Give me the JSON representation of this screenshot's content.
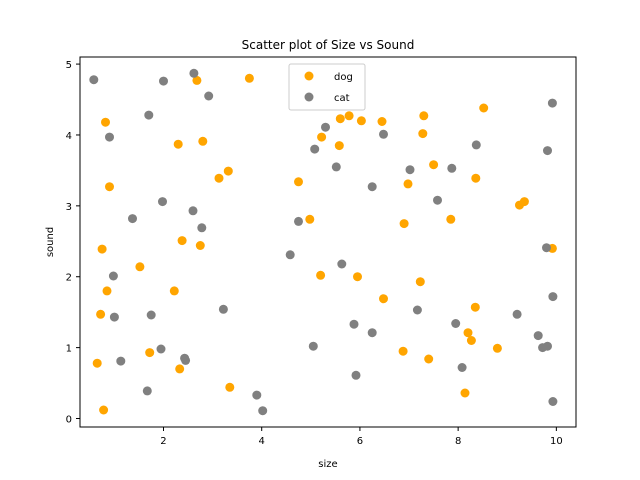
{
  "chart_data": {
    "type": "scatter",
    "title": "Scatter plot of Size vs Sound",
    "xlabel": "size",
    "ylabel": "sound",
    "xlim": [
      0.3,
      10.4
    ],
    "ylim": [
      -0.12,
      5.1
    ],
    "xticks": [
      2,
      4,
      6,
      8,
      10
    ],
    "yticks": [
      0,
      1,
      2,
      3,
      4,
      5
    ],
    "grid": false,
    "legend_position": "top-center",
    "series": [
      {
        "name": "dog",
        "color": "#FFA500",
        "points": [
          [
            0.65,
            0.78
          ],
          [
            0.72,
            1.47
          ],
          [
            0.75,
            2.39
          ],
          [
            0.78,
            0.12
          ],
          [
            0.82,
            4.18
          ],
          [
            0.85,
            1.8
          ],
          [
            0.9,
            3.27
          ],
          [
            1.52,
            2.14
          ],
          [
            1.72,
            0.93
          ],
          [
            2.22,
            1.8
          ],
          [
            2.3,
            3.87
          ],
          [
            2.33,
            0.7
          ],
          [
            2.38,
            2.51
          ],
          [
            2.68,
            4.77
          ],
          [
            2.75,
            2.44
          ],
          [
            2.8,
            3.91
          ],
          [
            3.13,
            3.39
          ],
          [
            3.32,
            3.49
          ],
          [
            3.35,
            0.44
          ],
          [
            3.75,
            4.8
          ],
          [
            4.75,
            3.34
          ],
          [
            4.98,
            2.81
          ],
          [
            5.2,
            2.02
          ],
          [
            5.22,
            3.97
          ],
          [
            5.58,
            3.85
          ],
          [
            5.6,
            4.23
          ],
          [
            5.78,
            4.27
          ],
          [
            5.95,
            2.0
          ],
          [
            6.03,
            4.2
          ],
          [
            6.45,
            4.19
          ],
          [
            6.48,
            1.69
          ],
          [
            6.88,
            0.95
          ],
          [
            6.9,
            2.75
          ],
          [
            6.98,
            3.31
          ],
          [
            7.23,
            1.93
          ],
          [
            7.28,
            4.02
          ],
          [
            7.3,
            4.27
          ],
          [
            7.4,
            0.84
          ],
          [
            7.5,
            3.58
          ],
          [
            7.85,
            2.81
          ],
          [
            8.14,
            0.36
          ],
          [
            8.2,
            1.21
          ],
          [
            8.27,
            1.1
          ],
          [
            8.35,
            1.57
          ],
          [
            8.36,
            3.39
          ],
          [
            8.52,
            4.38
          ],
          [
            8.8,
            0.99
          ],
          [
            9.25,
            3.01
          ],
          [
            9.35,
            3.06
          ],
          [
            9.92,
            2.4
          ]
        ]
      },
      {
        "name": "cat",
        "color": "#808080",
        "points": [
          [
            0.58,
            4.78
          ],
          [
            0.9,
            3.97
          ],
          [
            0.98,
            2.01
          ],
          [
            1.0,
            1.43
          ],
          [
            1.13,
            0.81
          ],
          [
            1.37,
            2.82
          ],
          [
            1.67,
            0.39
          ],
          [
            1.7,
            4.28
          ],
          [
            1.75,
            1.46
          ],
          [
            1.95,
            0.98
          ],
          [
            1.98,
            3.06
          ],
          [
            2.0,
            4.76
          ],
          [
            2.43,
            0.85
          ],
          [
            2.45,
            0.82
          ],
          [
            2.6,
            2.93
          ],
          [
            2.62,
            4.87
          ],
          [
            2.78,
            2.69
          ],
          [
            2.92,
            4.55
          ],
          [
            3.22,
            1.54
          ],
          [
            3.9,
            0.33
          ],
          [
            4.02,
            0.11
          ],
          [
            4.58,
            2.31
          ],
          [
            4.75,
            2.78
          ],
          [
            5.05,
            1.02
          ],
          [
            5.08,
            3.8
          ],
          [
            5.3,
            4.11
          ],
          [
            5.52,
            3.55
          ],
          [
            5.63,
            2.18
          ],
          [
            5.88,
            1.33
          ],
          [
            5.92,
            0.61
          ],
          [
            6.25,
            3.27
          ],
          [
            6.25,
            1.21
          ],
          [
            6.48,
            4.01
          ],
          [
            7.02,
            3.51
          ],
          [
            7.17,
            1.53
          ],
          [
            7.58,
            3.08
          ],
          [
            7.87,
            3.53
          ],
          [
            7.95,
            1.34
          ],
          [
            8.08,
            0.72
          ],
          [
            8.37,
            3.86
          ],
          [
            9.2,
            1.47
          ],
          [
            9.63,
            1.17
          ],
          [
            9.72,
            1.0
          ],
          [
            9.8,
            2.41
          ],
          [
            9.82,
            1.02
          ],
          [
            9.82,
            3.78
          ],
          [
            9.92,
            4.45
          ],
          [
            9.93,
            1.72
          ],
          [
            9.93,
            0.24
          ]
        ]
      }
    ]
  }
}
